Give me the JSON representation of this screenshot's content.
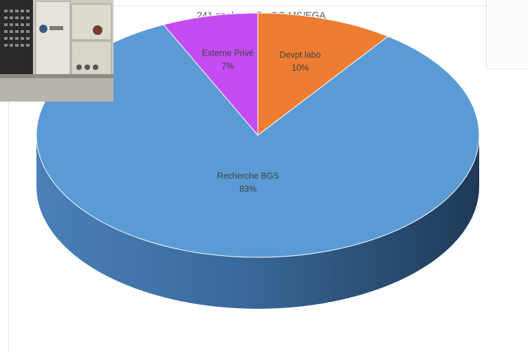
{
  "chart_data": {
    "type": "pie",
    "title": "241 analyses Py-GC-MS/EGA",
    "slices": [
      {
        "label": "Recherche BGS",
        "value": 83,
        "value_label": "83%",
        "color": "#5b9bd5"
      },
      {
        "label": "Devpt labo",
        "value": 10,
        "value_label": "10%",
        "color": "#ed7d31"
      },
      {
        "label": "Externe Privé",
        "value": 7,
        "value_label": "7%",
        "color": "#c44cf0"
      }
    ],
    "legend": "none",
    "style": "3d"
  }
}
